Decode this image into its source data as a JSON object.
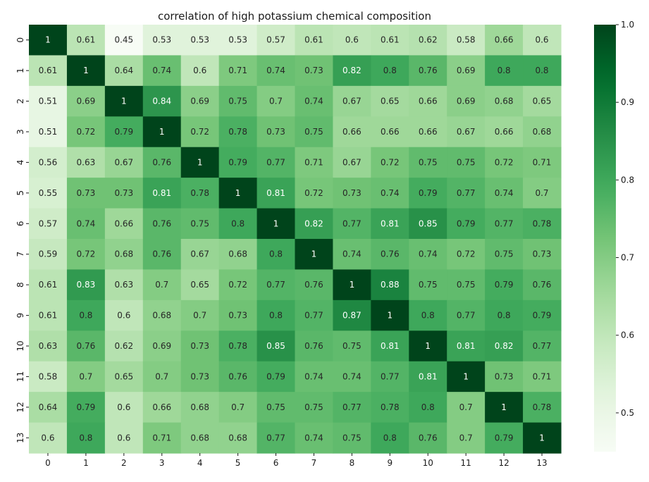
{
  "chart_data": {
    "type": "heatmap",
    "title": "correlation of high potassium chemical composition",
    "xlabel": "",
    "ylabel": "",
    "x_categories": [
      "0",
      "1",
      "2",
      "3",
      "4",
      "5",
      "6",
      "7",
      "8",
      "9",
      "10",
      "11",
      "12",
      "13"
    ],
    "y_categories": [
      "0",
      "1",
      "2",
      "3",
      "4",
      "5",
      "6",
      "7",
      "8",
      "9",
      "10",
      "11",
      "12",
      "13"
    ],
    "values": [
      [
        1,
        0.61,
        0.45,
        0.53,
        0.53,
        0.53,
        0.57,
        0.61,
        0.6,
        0.61,
        0.62,
        0.58,
        0.66,
        0.6
      ],
      [
        0.61,
        1,
        0.64,
        0.74,
        0.6,
        0.71,
        0.74,
        0.73,
        0.82,
        0.8,
        0.76,
        0.69,
        0.8,
        0.8
      ],
      [
        0.51,
        0.69,
        1,
        0.84,
        0.69,
        0.75,
        0.7,
        0.74,
        0.67,
        0.65,
        0.66,
        0.69,
        0.68,
        0.65
      ],
      [
        0.51,
        0.72,
        0.79,
        1,
        0.72,
        0.78,
        0.73,
        0.75,
        0.66,
        0.66,
        0.66,
        0.67,
        0.66,
        0.68
      ],
      [
        0.56,
        0.63,
        0.67,
        0.76,
        1,
        0.79,
        0.77,
        0.71,
        0.67,
        0.72,
        0.75,
        0.75,
        0.72,
        0.71
      ],
      [
        0.55,
        0.73,
        0.73,
        0.81,
        0.78,
        1,
        0.81,
        0.72,
        0.73,
        0.74,
        0.79,
        0.77,
        0.74,
        0.7
      ],
      [
        0.57,
        0.74,
        0.66,
        0.76,
        0.75,
        0.8,
        1,
        0.82,
        0.77,
        0.81,
        0.85,
        0.79,
        0.77,
        0.78
      ],
      [
        0.59,
        0.72,
        0.68,
        0.76,
        0.67,
        0.68,
        0.8,
        1,
        0.74,
        0.76,
        0.74,
        0.72,
        0.75,
        0.73
      ],
      [
        0.61,
        0.83,
        0.63,
        0.7,
        0.65,
        0.72,
        0.77,
        0.76,
        1,
        0.88,
        0.75,
        0.75,
        0.79,
        0.76
      ],
      [
        0.61,
        0.8,
        0.6,
        0.68,
        0.7,
        0.73,
        0.8,
        0.77,
        0.87,
        1,
        0.8,
        0.77,
        0.8,
        0.79
      ],
      [
        0.63,
        0.76,
        0.62,
        0.69,
        0.73,
        0.78,
        0.85,
        0.76,
        0.75,
        0.81,
        1,
        0.81,
        0.82,
        0.77
      ],
      [
        0.58,
        0.7,
        0.65,
        0.7,
        0.73,
        0.76,
        0.79,
        0.74,
        0.74,
        0.77,
        0.81,
        1,
        0.73,
        0.71
      ],
      [
        0.64,
        0.79,
        0.6,
        0.66,
        0.68,
        0.7,
        0.75,
        0.75,
        0.77,
        0.78,
        0.8,
        0.7,
        1,
        0.78
      ],
      [
        0.6,
        0.8,
        0.6,
        0.71,
        0.68,
        0.68,
        0.77,
        0.74,
        0.75,
        0.8,
        0.76,
        0.7,
        0.79,
        1
      ]
    ],
    "colormap": "Greens",
    "color_low": "#f7fcf5",
    "color_high": "#00441b",
    "vmin": 0.45,
    "vmax": 1.0,
    "colorbar_ticks": [
      0.5,
      0.6,
      0.7,
      0.8,
      0.9,
      1.0
    ],
    "colorbar_tick_labels": [
      "0.5",
      "0.6",
      "0.7",
      "0.8",
      "0.9",
      "1.0"
    ],
    "annotations": true,
    "grid": false
  }
}
